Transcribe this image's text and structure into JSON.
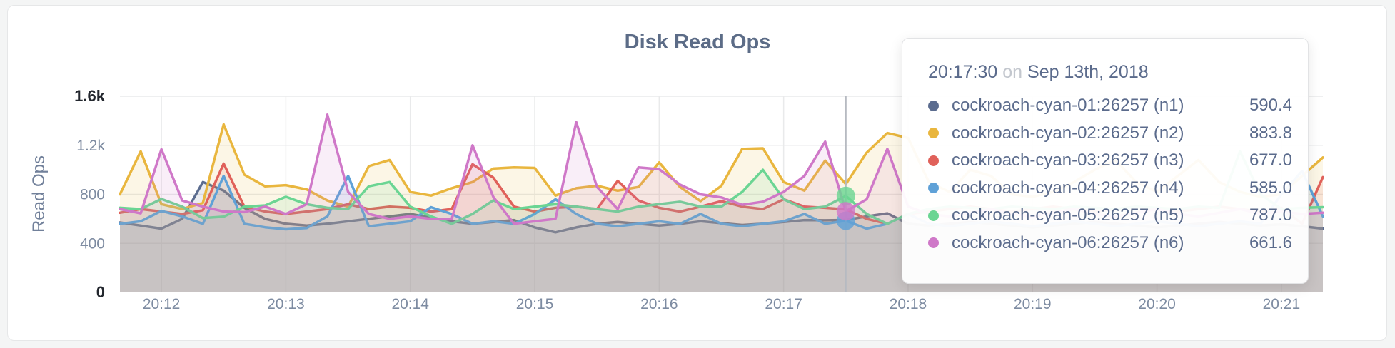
{
  "page": {
    "background": "#f4f5f5"
  },
  "chart_data": {
    "type": "area",
    "title": "Disk Read Ops",
    "ylabel": "Read Ops",
    "xlabel": "",
    "grid": true,
    "ylim": [
      0,
      1600
    ],
    "x_start": "20:11:40",
    "x_interval_seconds": 10,
    "x_ticks": [
      "20:12",
      "20:13",
      "20:14",
      "20:15",
      "20:16",
      "20:17",
      "20:18",
      "20:19",
      "20:20",
      "20:21"
    ],
    "y_ticks": [
      {
        "value": 0,
        "label": "0",
        "emphasis": true
      },
      {
        "value": 400,
        "label": "400",
        "emphasis": false
      },
      {
        "value": 800,
        "label": "800",
        "emphasis": false
      },
      {
        "value": 1200,
        "label": "1.2k",
        "emphasis": false
      },
      {
        "value": 1600,
        "label": "1.6k",
        "emphasis": true
      }
    ],
    "series": [
      {
        "id": "n1",
        "name": "cockroach-cyan-01:26257 (n1)",
        "color": "#5b6c8f",
        "values": [
          570,
          545,
          520,
          600,
          900,
          830,
          690,
          600,
          560,
          545,
          560,
          580,
          600,
          620,
          640,
          610,
          580,
          560,
          575,
          590,
          530,
          490,
          530,
          560,
          575,
          560,
          545,
          560,
          580,
          565,
          550,
          560,
          575,
          590,
          588,
          590.4,
          620,
          645,
          560,
          545,
          560,
          575,
          560,
          545,
          530,
          545,
          560,
          575,
          560,
          545,
          530,
          545,
          560,
          575,
          560,
          545,
          555,
          540,
          520
        ]
      },
      {
        "id": "n2",
        "name": "cockroach-cyan-02:26257 (n2)",
        "color": "#e9b63e",
        "values": [
          800,
          1150,
          720,
          680,
          730,
          1370,
          960,
          865,
          875,
          840,
          750,
          700,
          1030,
          1080,
          820,
          790,
          850,
          900,
          1010,
          1020,
          1015,
          790,
          850,
          870,
          830,
          860,
          1060,
          860,
          745,
          870,
          1170,
          1175,
          900,
          830,
          1075,
          883.8,
          1140,
          1300,
          1260,
          900,
          820,
          1000,
          950,
          800,
          780,
          820,
          900,
          1000,
          1080,
          900,
          820,
          950,
          1080,
          900,
          820,
          780,
          800,
          950,
          1100
        ]
      },
      {
        "id": "n3",
        "name": "cockroach-cyan-03:26257 (n3)",
        "color": "#e0615a",
        "values": [
          650,
          680,
          660,
          640,
          670,
          1050,
          700,
          660,
          640,
          660,
          680,
          720,
          680,
          700,
          690,
          660,
          680,
          1045,
          937,
          700,
          660,
          690,
          700,
          680,
          910,
          750,
          690,
          660,
          700,
          745,
          700,
          680,
          760,
          700,
          690,
          677,
          600,
          560,
          640,
          660,
          680,
          700,
          680,
          660,
          680,
          700,
          680,
          660,
          680,
          700,
          680,
          660,
          680,
          700,
          680,
          660,
          690,
          560,
          940
        ]
      },
      {
        "id": "n4",
        "name": "cockroach-cyan-04:26257 (n4)",
        "color": "#5fa1d7",
        "values": [
          560,
          580,
          665,
          620,
          560,
          950,
          560,
          531,
          515,
          525,
          620,
          950,
          540,
          560,
          580,
          695,
          640,
          560,
          580,
          560,
          640,
          760,
          640,
          560,
          540,
          560,
          580,
          560,
          640,
          560,
          540,
          560,
          580,
          640,
          560,
          585,
          520,
          560,
          640,
          560,
          540,
          560,
          580,
          560,
          540,
          560,
          580,
          560,
          540,
          560,
          580,
          560,
          540,
          560,
          580,
          560,
          800,
          990,
          620
        ]
      },
      {
        "id": "n5",
        "name": "cockroach-cyan-05:26257 (n5)",
        "color": "#6bd593",
        "values": [
          690,
          680,
          762,
          700,
          606,
          618,
          700,
          710,
          780,
          720,
          690,
          680,
          866,
          900,
          700,
          620,
          560,
          640,
          751,
          680,
          700,
          720,
          700,
          680,
          660,
          700,
          720,
          740,
          700,
          700,
          820,
          1000,
          760,
          680,
          700,
          787,
          640,
          560,
          640,
          680,
          700,
          690,
          680,
          700,
          690,
          680,
          700,
          690,
          680,
          700,
          690,
          680,
          700,
          690,
          1150,
          800,
          680,
          690,
          695
        ]
      },
      {
        "id": "n6",
        "name": "cockroach-cyan-06:26257 (n6)",
        "color": "#cf78c8",
        "values": [
          680,
          645,
          1167,
          750,
          700,
          660,
          655,
          700,
          640,
          720,
          1450,
          820,
          640,
          600,
          620,
          600,
          600,
          1200,
          780,
          560,
          580,
          600,
          1390,
          860,
          680,
          1020,
          1005,
          880,
          800,
          775,
          715,
          740,
          820,
          950,
          1230,
          661.6,
          760,
          1170,
          700,
          640,
          620,
          650,
          680,
          640,
          620,
          650,
          680,
          640,
          620,
          650,
          680,
          640,
          620,
          650,
          680,
          640,
          660,
          640,
          650
        ]
      }
    ]
  },
  "tooltip": {
    "time": "20:17:30",
    "conjunction": "on",
    "date": "Sep 13th, 2018",
    "hover_dots": [
      "n4",
      "n5",
      "n6"
    ],
    "rows": [
      {
        "name": "cockroach-cyan-01:26257 (n1)",
        "value": "590.4",
        "color": "#5b6c8f"
      },
      {
        "name": "cockroach-cyan-02:26257 (n2)",
        "value": "883.8",
        "color": "#e9b63e"
      },
      {
        "name": "cockroach-cyan-03:26257 (n3)",
        "value": "677.0",
        "color": "#e0615a"
      },
      {
        "name": "cockroach-cyan-04:26257 (n4)",
        "value": "585.0",
        "color": "#5fa1d7"
      },
      {
        "name": "cockroach-cyan-05:26257 (n5)",
        "value": "787.0",
        "color": "#6bd593"
      },
      {
        "name": "cockroach-cyan-06:26257 (n6)",
        "value": "661.6",
        "color": "#cf78c8"
      }
    ]
  }
}
